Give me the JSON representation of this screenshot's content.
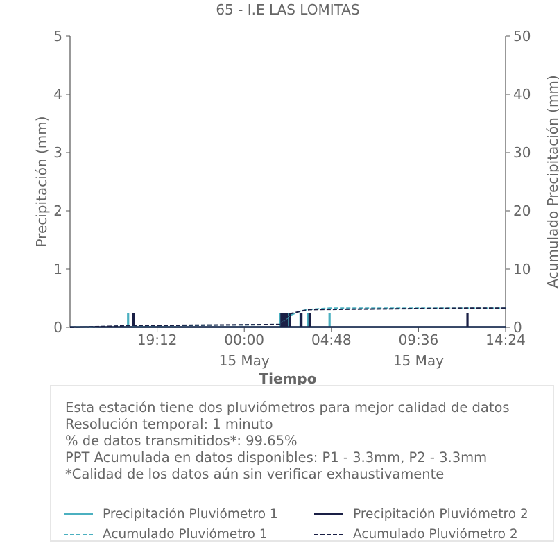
{
  "colors": {
    "text": "#666666",
    "axis": "#555555",
    "p1": "#4bb0c0",
    "p2": "#1a1f45",
    "box_border": "#e6e6e6"
  },
  "chart_data": {
    "type": "bar",
    "title": "65 - I.E LAS LOMITAS",
    "xlabel": "Tiempo",
    "ylabel": "Precipitación (mm)",
    "y2label": "Acumulado Precipitación (mm)",
    "xlim": [
      "14 May 14:24",
      "15 May 14:24"
    ],
    "ylim": [
      0,
      5
    ],
    "y2lim": [
      0,
      50
    ],
    "yticks": [
      "0",
      "1",
      "2",
      "3",
      "4",
      "5"
    ],
    "y2ticks": [
      "0",
      "10",
      "20",
      "30",
      "40",
      "50"
    ],
    "xticks": [
      {
        "hour": 4.8,
        "label": "19:12",
        "sublabel": ""
      },
      {
        "hour": 9.6,
        "label": "00:00",
        "sublabel": "15 May"
      },
      {
        "hour": 14.4,
        "label": "04:48",
        "sublabel": ""
      },
      {
        "hour": 19.2,
        "label": "09:36",
        "sublabel": "15 May"
      },
      {
        "hour": 24.0,
        "label": "14:24",
        "sublabel": ""
      }
    ],
    "grid": false,
    "x_unit": "hours after 14 May 14:24",
    "series": [
      {
        "name": "Precipitación Pluviómetro 1",
        "axis": "left",
        "style": "bars",
        "points": [
          {
            "x": 3.2,
            "y": 0.25
          },
          {
            "x": 11.6,
            "y": 0.25
          },
          {
            "x": 11.7,
            "y": 0.25
          },
          {
            "x": 11.8,
            "y": 0.25
          },
          {
            "x": 11.9,
            "y": 0.25
          },
          {
            "x": 12.05,
            "y": 0.25
          },
          {
            "x": 12.7,
            "y": 0.25
          },
          {
            "x": 13.1,
            "y": 0.25
          },
          {
            "x": 14.3,
            "y": 0.25
          }
        ]
      },
      {
        "name": "Precipitación Pluviómetro 2",
        "axis": "left",
        "style": "bars",
        "points": [
          {
            "x": 3.5,
            "y": 0.25
          },
          {
            "x": 11.65,
            "y": 0.25
          },
          {
            "x": 11.75,
            "y": 0.25
          },
          {
            "x": 11.85,
            "y": 0.25
          },
          {
            "x": 11.95,
            "y": 0.25
          },
          {
            "x": 12.1,
            "y": 0.25
          },
          {
            "x": 12.75,
            "y": 0.25
          },
          {
            "x": 13.2,
            "y": 0.25
          },
          {
            "x": 21.9,
            "y": 0.25
          }
        ]
      },
      {
        "name": "Acumulado Pluviómetro 1",
        "axis": "right",
        "style": "dashed-step",
        "points": [
          {
            "x": 0,
            "y": 0
          },
          {
            "x": 3.2,
            "y": 0.25
          },
          {
            "x": 11.6,
            "y": 0.5
          },
          {
            "x": 12.1,
            "y": 2.0
          },
          {
            "x": 12.7,
            "y": 2.8
          },
          {
            "x": 13.1,
            "y": 3.05
          },
          {
            "x": 14.3,
            "y": 3.3
          },
          {
            "x": 21.9,
            "y": 3.3
          },
          {
            "x": 24.0,
            "y": 3.3
          }
        ]
      },
      {
        "name": "Acumulado Pluviómetro 2",
        "axis": "right",
        "style": "dashed-step",
        "points": [
          {
            "x": 0,
            "y": 0
          },
          {
            "x": 3.5,
            "y": 0.3
          },
          {
            "x": 11.65,
            "y": 0.5
          },
          {
            "x": 12.1,
            "y": 2.3
          },
          {
            "x": 12.75,
            "y": 2.8
          },
          {
            "x": 13.2,
            "y": 3.05
          },
          {
            "x": 21.9,
            "y": 3.3
          },
          {
            "x": 24.0,
            "y": 3.3
          }
        ]
      }
    ]
  },
  "info": {
    "lines": [
      "Esta estación tiene dos pluviómetros para mejor calidad de datos",
      "Resolución temporal: 1 minuto",
      "% de datos transmitidos*: 99.65%",
      "PPT Acumulada en datos disponibles: P1 - 3.3mm, P2 - 3.3mm",
      "*Calidad de los datos aún sin verificar exhaustivamente"
    ]
  },
  "legend": {
    "items": [
      {
        "label": "Precipitación Pluviómetro 1",
        "color": "#4bb0c0",
        "style": "solid"
      },
      {
        "label": "Precipitación Pluviómetro 2",
        "color": "#1a1f45",
        "style": "solid"
      },
      {
        "label": "Acumulado Pluviómetro 1",
        "color": "#4bb0c0",
        "style": "dashed"
      },
      {
        "label": "Acumulado Pluviómetro 2",
        "color": "#1a1f45",
        "style": "dashed"
      }
    ]
  }
}
